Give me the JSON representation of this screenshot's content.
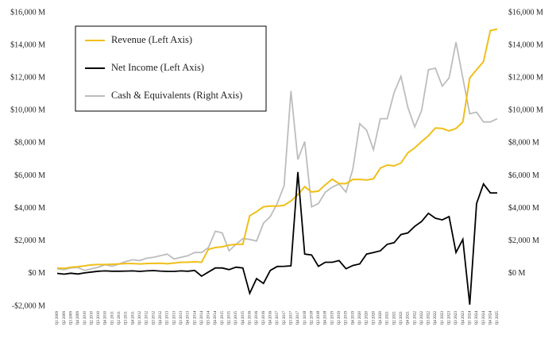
{
  "chart_data": {
    "type": "line",
    "categories": [
      "Q1 2009",
      "Q2 2009",
      "Q3 2009",
      "Q4 2009",
      "Q1 2010",
      "Q2 2010",
      "Q3 2010",
      "Q4 2010",
      "Q1 2011",
      "Q2 2011",
      "Q3 2011",
      "Q4 2011",
      "Q1 2012",
      "Q2 2012",
      "Q3 2012",
      "Q4 2012",
      "Q1 2013",
      "Q2 2013",
      "Q3 2013",
      "Q4 2013",
      "Q1 2014",
      "Q2 2014",
      "Q3 2014",
      "Q4 2014",
      "Q1 2015",
      "Q2 2015",
      "Q3 2015",
      "Q4 2015",
      "Q1 2016",
      "Q2 2016",
      "Q3 2016",
      "Q4 2016",
      "Q1 2017",
      "Q2 2017",
      "Q3 2017",
      "Q4 2017",
      "Q1 2018",
      "Q2 2018",
      "Q3 2018",
      "Q4 2018",
      "Q1 2019",
      "Q2 2019",
      "Q3 2019",
      "Q4 2019",
      "Q1 2020",
      "Q2 2020",
      "Q3 2020",
      "Q4 2020",
      "Q1 2021",
      "Q2 2021",
      "Q3 2021",
      "Q4 2021",
      "Q1 2022",
      "Q2 2022",
      "Q3 2022",
      "Q4 2022",
      "Q1 2023",
      "Q2 2023",
      "Q3 2023",
      "Q4 2023",
      "Q1 2024",
      "Q2 2024",
      "Q3 2024",
      "Q4 2024",
      "Q1 2025"
    ],
    "series": [
      {
        "name": "Revenue (Left Axis)",
        "color": "#f0bf1a",
        "axis": "y",
        "values": [
          350,
          320,
          400,
          430,
          480,
          540,
          560,
          560,
          580,
          600,
          620,
          620,
          600,
          620,
          630,
          640,
          610,
          650,
          700,
          700,
          730,
          700,
          1500,
          1600,
          1650,
          1750,
          1800,
          1800,
          3550,
          3800,
          4100,
          4150,
          4140,
          4190,
          4460,
          4840,
          5330,
          5010,
          5060,
          5450,
          5790,
          5520,
          5520,
          5780,
          5780,
          5740,
          5820,
          6470,
          6660,
          6610,
          6780,
          7410,
          7710,
          8100,
          8460,
          8930,
          8900,
          8750,
          8900,
          9300,
          12000,
          12500,
          13000,
          14900,
          15000
        ]
      },
      {
        "name": "Net Income (Left Axis)",
        "color": "#000000",
        "axis": "y",
        "values": [
          20,
          -30,
          30,
          -20,
          50,
          100,
          150,
          170,
          150,
          150,
          160,
          170,
          140,
          170,
          190,
          160,
          140,
          140,
          170,
          150,
          200,
          -150,
          100,
          350,
          350,
          250,
          400,
          350,
          -1200,
          -300,
          -600,
          200,
          440,
          450,
          480,
          6230,
          1200,
          1150,
          450,
          700,
          700,
          800,
          300,
          500,
          600,
          1200,
          1300,
          1400,
          1800,
          1900,
          2400,
          2500,
          2900,
          3200,
          3700,
          3400,
          3300,
          3500,
          1300,
          2100,
          -1900,
          4300,
          5500,
          4950,
          4950
        ]
      },
      {
        "name": "Cash & Equivalents (Right Axis)",
        "color": "#bdbdbd",
        "axis": "y2",
        "values": [
          300,
          250,
          350,
          380,
          200,
          300,
          400,
          550,
          450,
          600,
          750,
          850,
          800,
          950,
          1000,
          1100,
          1200,
          900,
          1000,
          1100,
          1300,
          1300,
          1600,
          2600,
          2500,
          1400,
          1800,
          2150,
          2100,
          2000,
          3100,
          3500,
          4300,
          5400,
          11200,
          7000,
          8100,
          4100,
          4300,
          5000,
          5300,
          5500,
          5000,
          6400,
          9200,
          8800,
          7600,
          9500,
          9500,
          11100,
          12100,
          10200,
          9000,
          10000,
          12500,
          12600,
          11500,
          12000,
          14200,
          12000,
          9800,
          9900,
          9300,
          9300,
          9500
        ]
      }
    ],
    "ylim": [
      -2000,
      16000
    ],
    "yticks": [
      {
        "value": -2000,
        "label": "-$2,000 M"
      },
      {
        "value": 0,
        "label": "$0 M"
      },
      {
        "value": 2000,
        "label": "$2,000 M"
      },
      {
        "value": 4000,
        "label": "$4,000 M"
      },
      {
        "value": 6000,
        "label": "$6,000 M"
      },
      {
        "value": 8000,
        "label": "$8,000 M"
      },
      {
        "value": 10000,
        "label": "$10,000 M"
      },
      {
        "value": 12000,
        "label": "$12,000 M"
      },
      {
        "value": 14000,
        "label": "$14,000 M"
      },
      {
        "value": 16000,
        "label": "$16,000 M"
      }
    ],
    "y2lim": [
      -2000,
      16000
    ],
    "y2ticks": [
      {
        "value": 0,
        "label": "$0 M"
      },
      {
        "value": 2000,
        "label": "$2,000 M"
      },
      {
        "value": 4000,
        "label": "$4,000 M"
      },
      {
        "value": 6000,
        "label": "$6,000 M"
      },
      {
        "value": 8000,
        "label": "$8,000 M"
      },
      {
        "value": 10000,
        "label": "$10,000 M"
      },
      {
        "value": 12000,
        "label": "$12,000 M"
      },
      {
        "value": 14000,
        "label": "$14,000 M"
      },
      {
        "value": 16000,
        "label": "$16,000 M"
      }
    ],
    "legend": "upper left",
    "grid": false
  }
}
